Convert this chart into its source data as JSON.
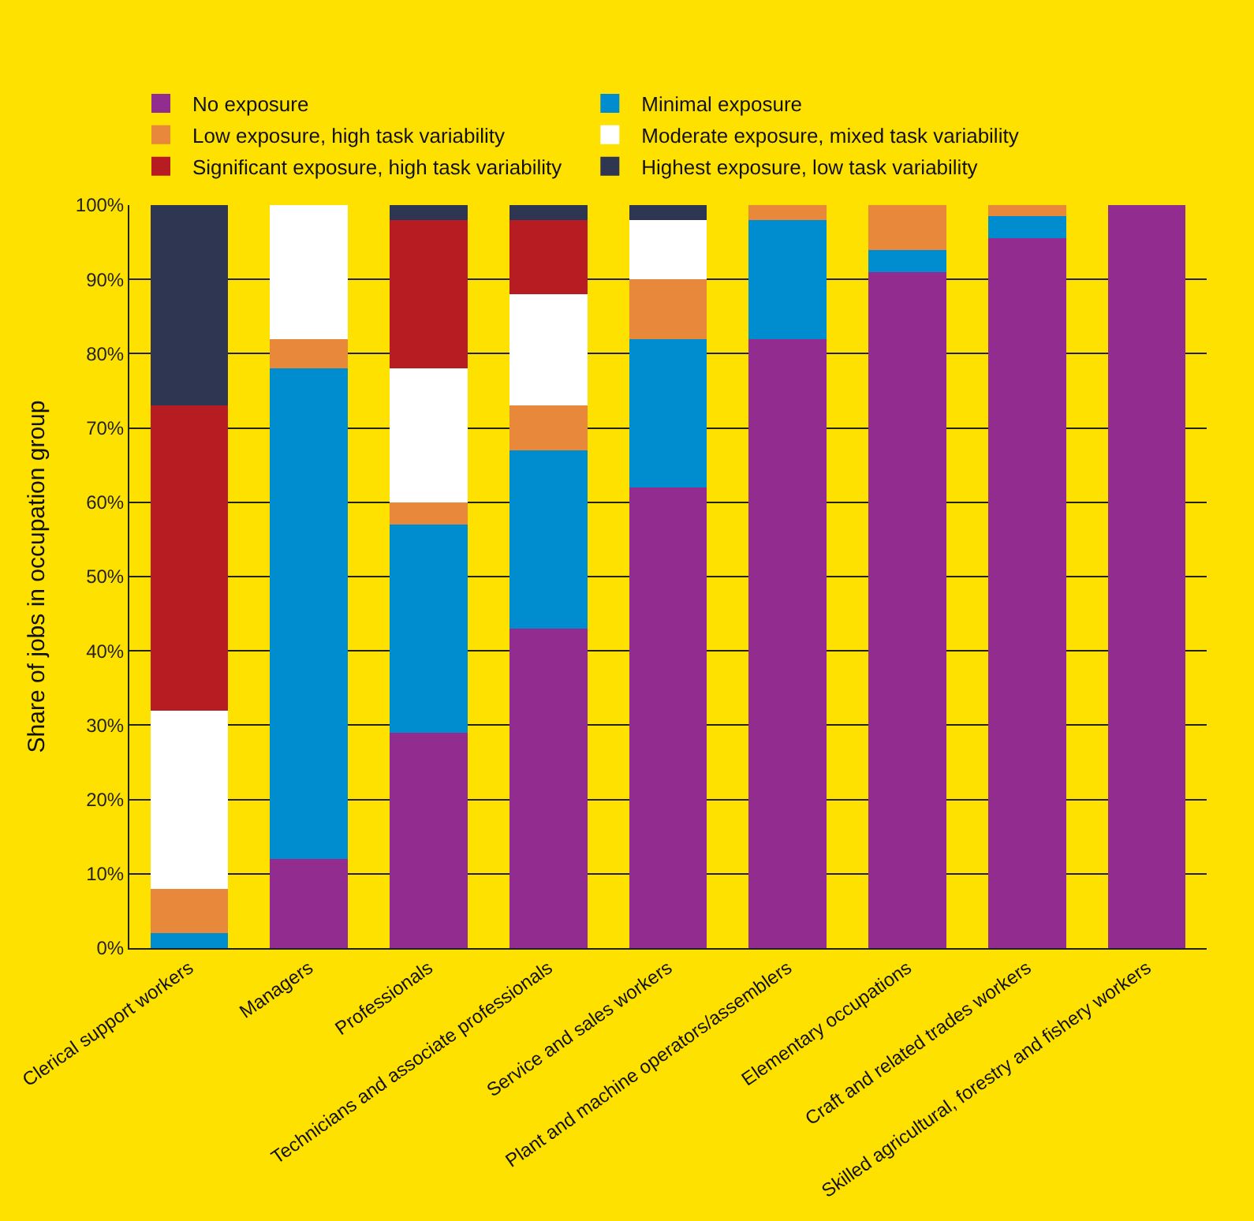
{
  "chart_data": {
    "type": "bar",
    "stacked": true,
    "ylabel": "Share of jobs in occupation group",
    "categories": [
      "Clerical support workers",
      "Managers",
      "Professionals",
      "Technicians and associate professionals",
      "Service and sales workers",
      "Plant and machine operators/assemblers",
      "Elementary occupations",
      "Craft and related trades workers",
      "Skilled agricultural, forestry and fishery workers"
    ],
    "series": [
      {
        "name": "No exposure",
        "color": "#922c8e",
        "values": [
          0,
          12,
          29,
          43,
          62,
          82,
          91,
          95.5,
          100
        ]
      },
      {
        "name": "Minimal exposure",
        "color": "#008dcf",
        "values": [
          2,
          66,
          28,
          24,
          20,
          16,
          3,
          3,
          0
        ]
      },
      {
        "name": "Low exposure, high task variability",
        "color": "#e8883a",
        "values": [
          6,
          4,
          3,
          6,
          8,
          2,
          6,
          1.5,
          0
        ]
      },
      {
        "name": "Moderate exposure, mixed task variability",
        "color": "#ffffff",
        "values": [
          24,
          18,
          18,
          15,
          8,
          0,
          0,
          0,
          0
        ]
      },
      {
        "name": "Significant exposure, high task variability",
        "color": "#b71c23",
        "values": [
          41,
          0,
          20,
          10,
          0,
          0,
          0,
          0,
          0
        ]
      },
      {
        "name": "Highest exposure, low task variability",
        "color": "#2f3651",
        "values": [
          27,
          0,
          2,
          2,
          2,
          0,
          0,
          0,
          0
        ]
      }
    ],
    "ylim": [
      0,
      100
    ],
    "yticks": [
      {
        "value": 0,
        "label": "0%"
      },
      {
        "value": 10,
        "label": "10%"
      },
      {
        "value": 20,
        "label": "20%"
      },
      {
        "value": 30,
        "label": "30%"
      },
      {
        "value": 40,
        "label": "40%"
      },
      {
        "value": 50,
        "label": "50%"
      },
      {
        "value": 60,
        "label": "60%"
      },
      {
        "value": 70,
        "label": "70%"
      },
      {
        "value": 80,
        "label": "80%"
      },
      {
        "value": 90,
        "label": "90%"
      },
      {
        "value": 100,
        "label": "100%"
      }
    ],
    "grid": "y",
    "legend": "top"
  }
}
